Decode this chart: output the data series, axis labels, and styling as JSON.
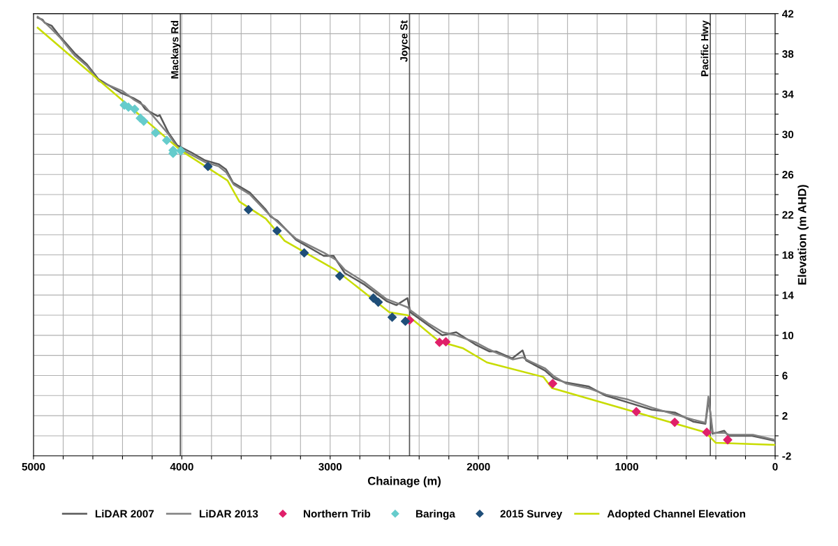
{
  "chart_data": {
    "type": "line",
    "xlabel": "Chainage (m)",
    "ylabel": "Elevation (m AHD)",
    "xlim": [
      5000,
      0
    ],
    "xticks": [
      5000,
      {
        "value": 4800,
        "label": null
      },
      {
        "value": 4600,
        "label": null
      },
      {
        "value": 4400,
        "label": null
      },
      {
        "value": 4200,
        "label": null
      },
      4000,
      {
        "value": 3800,
        "label": null
      },
      {
        "value": 3600,
        "label": null
      },
      {
        "value": 3400,
        "label": null
      },
      {
        "value": 3200,
        "label": null
      },
      3000,
      {
        "value": 2800,
        "label": null
      },
      {
        "value": 2600,
        "label": null
      },
      {
        "value": 2400,
        "label": null
      },
      {
        "value": 2200,
        "label": null
      },
      2000,
      {
        "value": 1800,
        "label": null
      },
      {
        "value": 1600,
        "label": null
      },
      {
        "value": 1400,
        "label": null
      },
      {
        "value": 1200,
        "label": null
      },
      1000,
      {
        "value": 800,
        "label": null
      },
      {
        "value": 600,
        "label": null
      },
      {
        "value": 400,
        "label": null
      },
      {
        "value": 200,
        "label": null
      },
      0
    ],
    "ylim": [
      -2,
      42
    ],
    "yticks": [
      -2,
      {
        "value": 0,
        "label": null
      },
      2,
      {
        "value": 4,
        "label": null
      },
      6,
      {
        "value": 8,
        "label": null
      },
      10,
      {
        "value": 12,
        "label": null
      },
      14,
      {
        "value": 16,
        "label": null
      },
      18,
      {
        "value": 20,
        "label": null
      },
      22,
      {
        "value": 24,
        "label": null
      },
      26,
      {
        "value": 28,
        "label": null
      },
      30,
      {
        "value": 32,
        "label": null
      },
      34,
      {
        "value": 36,
        "label": null
      },
      38,
      {
        "value": 40,
        "label": null
      },
      42
    ],
    "grid": true,
    "legend": "bottom",
    "ref_lines": [
      {
        "axis": "x",
        "value": 4010,
        "label": "Mackays Rd",
        "color": "#555555"
      },
      {
        "axis": "x",
        "value": 2465,
        "label": "Joyce St",
        "color": "#555555"
      },
      {
        "axis": "x",
        "value": 437,
        "label": "Pacific Hwy",
        "color": "#555555"
      }
    ],
    "series": [
      {
        "name": "LiDAR 2007",
        "color": "#595959",
        "marker": "none",
        "x": [
          4972,
          4939,
          4925,
          4878,
          4831,
          4718,
          4643,
          4563,
          4407,
          4327,
          4280,
          4247,
          4163,
          4149,
          4092,
          4031,
          3937,
          3843,
          3749,
          3702,
          3655,
          3542,
          3434,
          3401,
          3354,
          3231,
          3043,
          2977,
          2902,
          2775,
          2620,
          2554,
          2479,
          2460,
          2338,
          2244,
          2150,
          2023,
          1928,
          1881,
          1773,
          1703,
          1679,
          1552,
          1491,
          1411,
          1256,
          1143,
          988,
          833,
          673,
          550,
          470,
          447,
          423,
          343,
          315,
          155,
          0
        ],
        "values": [
          41.6,
          41.4,
          41.1,
          40.8,
          39.9,
          38.0,
          37.0,
          35.5,
          34.1,
          33.6,
          33.2,
          32.5,
          31.8,
          31.9,
          30.2,
          28.9,
          28.2,
          27.4,
          27.0,
          26.5,
          25.2,
          24.2,
          22.5,
          21.8,
          21.4,
          19.5,
          17.9,
          17.9,
          16.2,
          15.1,
          13.4,
          13.0,
          13.7,
          12.3,
          11.0,
          10.0,
          10.3,
          9.1,
          8.4,
          8.4,
          7.7,
          8.5,
          7.5,
          6.5,
          5.7,
          5.3,
          4.9,
          4.0,
          3.3,
          2.6,
          2.3,
          1.4,
          1.2,
          3.7,
          0.2,
          0.5,
          0.0,
          0.0,
          -0.5
        ]
      },
      {
        "name": "LiDAR 2013",
        "color": "#808080",
        "marker": "none",
        "x": [
          4972,
          4930,
          4880,
          4820,
          4720,
          4640,
          4560,
          4400,
          4320,
          4250,
          4170,
          4090,
          4030,
          3940,
          3840,
          3750,
          3700,
          3650,
          3540,
          3430,
          3350,
          3230,
          3040,
          2960,
          2900,
          2770,
          2620,
          2550,
          2480,
          2460,
          2340,
          2240,
          2150,
          2020,
          1930,
          1870,
          1770,
          1700,
          1680,
          1550,
          1490,
          1410,
          1250,
          1140,
          990,
          830,
          670,
          550,
          470,
          450,
          420,
          340,
          310,
          150,
          0
        ],
        "values": [
          41.7,
          41.2,
          40.5,
          39.6,
          37.8,
          36.8,
          35.3,
          34.3,
          33.4,
          32.8,
          31.4,
          30.0,
          28.7,
          28.0,
          27.2,
          26.8,
          26.2,
          25.0,
          24.0,
          22.3,
          21.2,
          19.6,
          18.2,
          17.5,
          16.5,
          15.3,
          13.6,
          13.2,
          12.8,
          12.5,
          11.2,
          10.3,
          10.0,
          9.3,
          8.6,
          8.2,
          7.6,
          7.8,
          7.6,
          6.7,
          5.9,
          5.2,
          4.7,
          4.1,
          3.6,
          2.8,
          2.1,
          1.6,
          1.3,
          3.9,
          0.3,
          0.3,
          0.1,
          0.1,
          -0.4
        ]
      },
      {
        "name": "Northern Trib",
        "type": "scatter",
        "color": "#e0206a",
        "marker": "diamond",
        "x": [
          2465,
          2263,
          2220,
          1500,
          936,
          677,
          461,
          320
        ],
        "values": [
          11.5,
          9.3,
          9.35,
          5.2,
          2.4,
          1.35,
          0.35,
          -0.4
        ]
      },
      {
        "name": "Baringa",
        "type": "scatter",
        "color": "#66cccc",
        "marker": "diamond",
        "x": [
          4388,
          4360,
          4318,
          4280,
          4257,
          4177,
          4102,
          4059,
          4059,
          4007
        ],
        "values": [
          32.9,
          32.7,
          32.5,
          31.6,
          31.3,
          30.15,
          29.4,
          28.4,
          28.1,
          28.35
        ]
      },
      {
        "name": "2015 Survey",
        "type": "scatter",
        "color": "#1f4e79",
        "marker": "diamond",
        "x": [
          3824,
          3551,
          3358,
          3175,
          2935,
          2709,
          2676,
          2582,
          2493
        ],
        "values": [
          26.8,
          22.5,
          20.4,
          18.2,
          15.9,
          13.7,
          13.3,
          11.8,
          11.4
        ]
      },
      {
        "name": "Adopted Channel Elevation",
        "color": "#c8dc00",
        "marker": "none",
        "x": [
          4972,
          4003,
          3692,
          3612,
          3434,
          3307,
          2963,
          2601,
          2479,
          2258,
          2197,
          2103,
          1943,
          1562,
          1505,
          470,
          400,
          0
        ],
        "values": [
          40.6,
          28.35,
          25.4,
          23.3,
          21.6,
          19.4,
          16.5,
          12.3,
          12.0,
          9.3,
          9.1,
          8.7,
          7.3,
          5.85,
          4.75,
          0.35,
          -0.7,
          -0.9
        ]
      }
    ]
  }
}
